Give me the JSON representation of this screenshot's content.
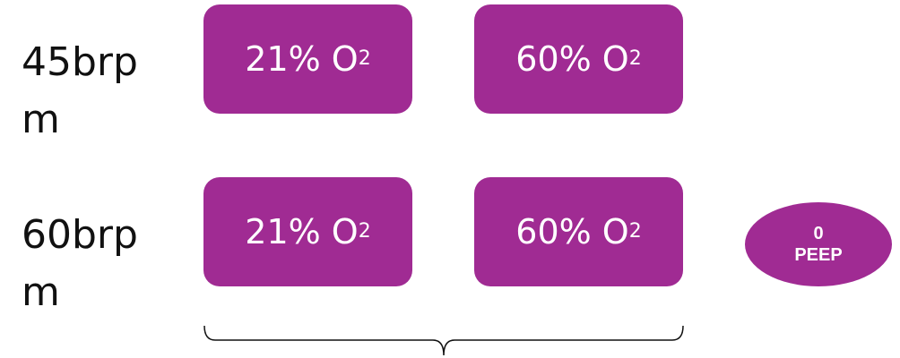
{
  "rows": [
    {
      "label": "45brpm",
      "boxes": [
        {
          "text": "21% O",
          "sub": "2"
        },
        {
          "text": "60% O",
          "sub": "2"
        }
      ]
    },
    {
      "label": "60brpm",
      "boxes": [
        {
          "text": "21% O",
          "sub": "2"
        },
        {
          "text": "60% O",
          "sub": "2"
        }
      ]
    }
  ],
  "oval": {
    "line1": "0",
    "line2": "PEEP"
  }
}
